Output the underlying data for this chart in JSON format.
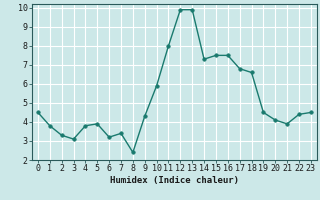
{
  "x": [
    0,
    1,
    2,
    3,
    4,
    5,
    6,
    7,
    8,
    9,
    10,
    11,
    12,
    13,
    14,
    15,
    16,
    17,
    18,
    19,
    20,
    21,
    22,
    23
  ],
  "y": [
    4.5,
    3.8,
    3.3,
    3.1,
    3.8,
    3.9,
    3.2,
    3.4,
    2.4,
    4.3,
    5.9,
    8.0,
    9.9,
    9.9,
    7.3,
    7.5,
    7.5,
    6.8,
    6.6,
    4.5,
    4.1,
    3.9,
    4.4,
    4.5
  ],
  "line_color": "#1a7a6e",
  "marker_color": "#1a7a6e",
  "bg_color": "#cce8e8",
  "grid_color": "#ffffff",
  "xlabel": "Humidex (Indice chaleur)",
  "xlim": [
    -0.5,
    23.5
  ],
  "ylim": [
    2,
    10.2
  ],
  "yticks": [
    2,
    3,
    4,
    5,
    6,
    7,
    8,
    9,
    10
  ],
  "xticks": [
    0,
    1,
    2,
    3,
    4,
    5,
    6,
    7,
    8,
    9,
    10,
    11,
    12,
    13,
    14,
    15,
    16,
    17,
    18,
    19,
    20,
    21,
    22,
    23
  ],
  "xlabel_fontsize": 6.5,
  "tick_fontsize": 6.0,
  "line_width": 1.0,
  "marker_size": 2.5
}
